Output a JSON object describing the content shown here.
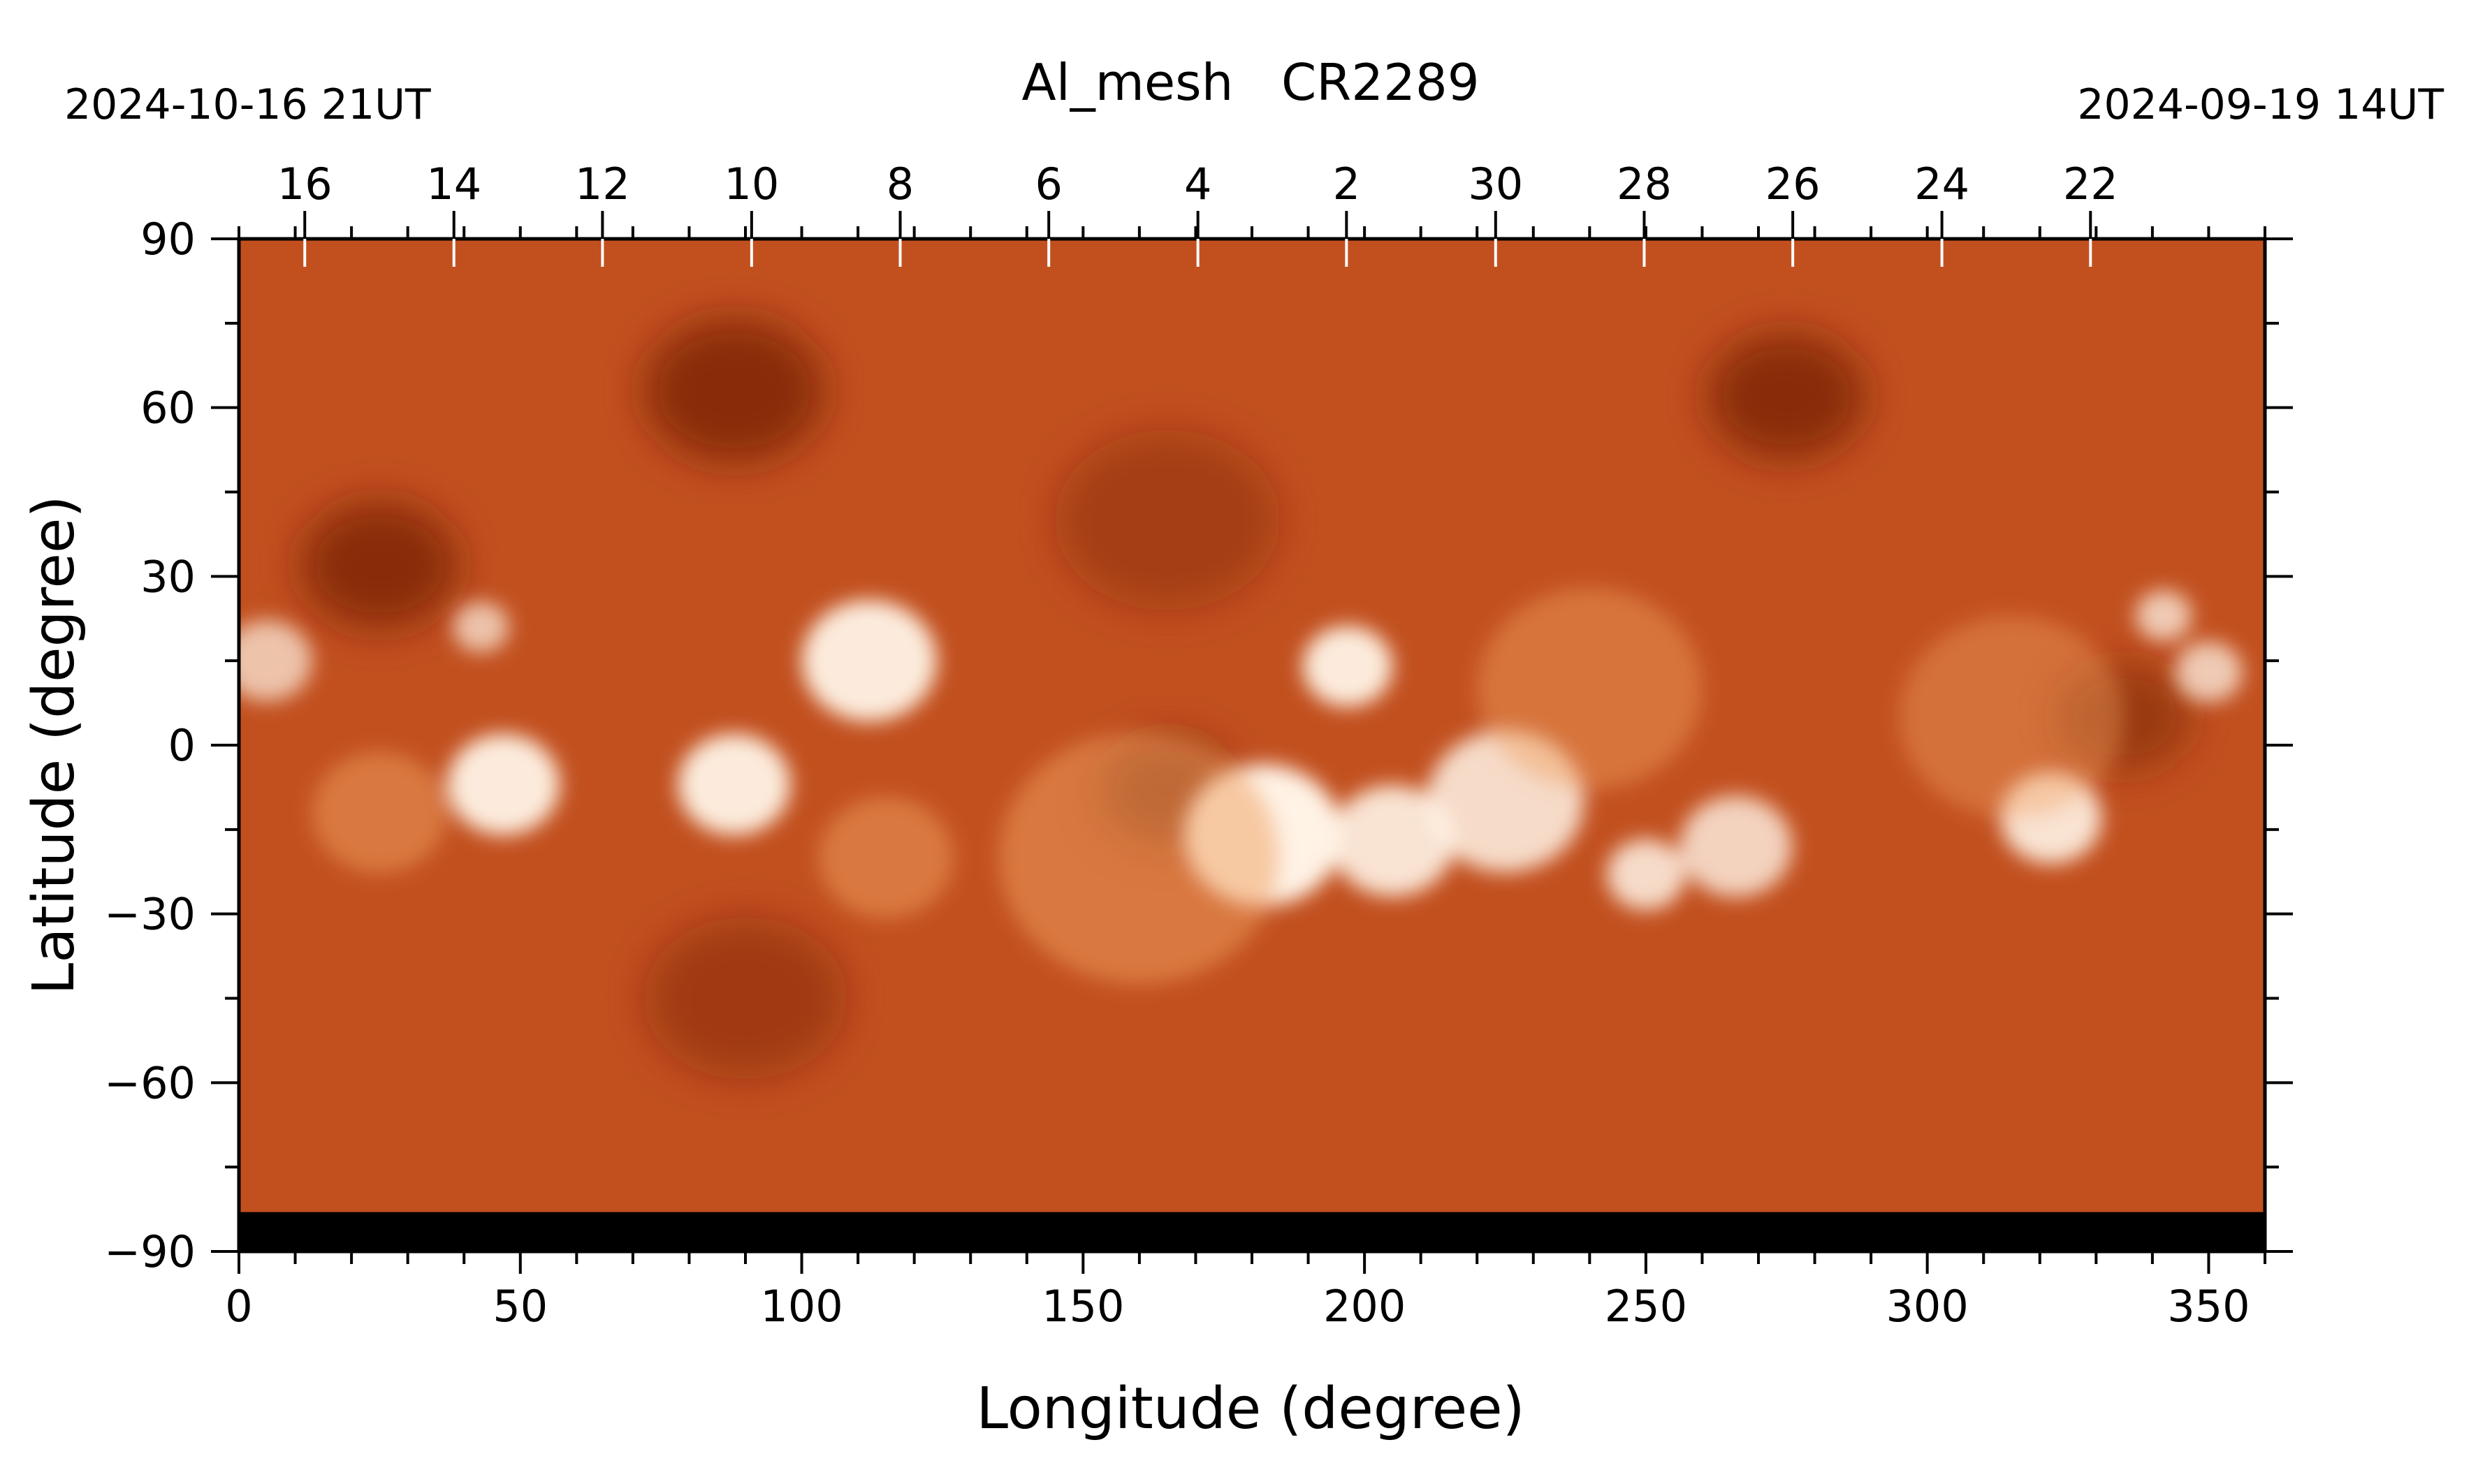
{
  "chart_data": {
    "type": "heatmap",
    "title": "Al_mesh   CR2289",
    "date_left": "2024-10-16 21UT",
    "date_right": "2024-09-19 14UT",
    "xlabel": "Longitude (degree)",
    "ylabel": "Latitude (degree)",
    "xlim": [
      0,
      360
    ],
    "ylim": [
      -90,
      90
    ],
    "x_ticks": [
      0,
      50,
      100,
      150,
      200,
      250,
      300,
      350
    ],
    "y_ticks": [
      -90,
      -60,
      -30,
      0,
      30,
      60,
      90
    ],
    "x_minor_step": 10,
    "y_minor_step": 15,
    "top_axis_ticks": [
      {
        "label": "16",
        "longitude": 11.7
      },
      {
        "label": "14",
        "longitude": 38.2
      },
      {
        "label": "12",
        "longitude": 64.6
      },
      {
        "label": "10",
        "longitude": 91.1
      },
      {
        "label": "8",
        "longitude": 117.5
      },
      {
        "label": "6",
        "longitude": 143.9
      },
      {
        "label": "4",
        "longitude": 170.4
      },
      {
        "label": "2",
        "longitude": 196.8
      },
      {
        "label": "30",
        "longitude": 223.3
      },
      {
        "label": "28",
        "longitude": 249.7
      },
      {
        "label": "26",
        "longitude": 276.1
      },
      {
        "label": "24",
        "longitude": 302.6
      },
      {
        "label": "22",
        "longitude": 329.0
      }
    ],
    "colormap": {
      "dark": "#6e1f05",
      "mid": "#bb4616",
      "bright": "#ffffff",
      "base": "#c2501f"
    },
    "no_data_below_latitude": -83,
    "bright_regions": [
      {
        "lon": 5,
        "lat": 15,
        "intensity": 0.7,
        "size": 8
      },
      {
        "lon": 43,
        "lat": 21,
        "intensity": 0.7,
        "size": 5
      },
      {
        "lon": 47,
        "lat": -7,
        "intensity": 0.95,
        "size": 10
      },
      {
        "lon": 25,
        "lat": -12,
        "intensity": 0.5,
        "size": 12
      },
      {
        "lon": 88,
        "lat": -7,
        "intensity": 0.95,
        "size": 10
      },
      {
        "lon": 112,
        "lat": 15,
        "intensity": 0.95,
        "size": 12
      },
      {
        "lon": 115,
        "lat": -20,
        "intensity": 0.5,
        "size": 12
      },
      {
        "lon": 182,
        "lat": -16,
        "intensity": 1.0,
        "size": 14
      },
      {
        "lon": 197,
        "lat": 14,
        "intensity": 0.95,
        "size": 8
      },
      {
        "lon": 205,
        "lat": -17,
        "intensity": 0.9,
        "size": 11
      },
      {
        "lon": 225,
        "lat": -10,
        "intensity": 0.85,
        "size": 14
      },
      {
        "lon": 250,
        "lat": -23,
        "intensity": 0.85,
        "size": 7
      },
      {
        "lon": 266,
        "lat": -18,
        "intensity": 0.8,
        "size": 10
      },
      {
        "lon": 322,
        "lat": -13,
        "intensity": 0.9,
        "size": 9
      },
      {
        "lon": 342,
        "lat": 23,
        "intensity": 0.75,
        "size": 5
      },
      {
        "lon": 350,
        "lat": 13,
        "intensity": 0.75,
        "size": 6
      },
      {
        "lon": 160,
        "lat": -20,
        "intensity": 0.5,
        "size": 25
      },
      {
        "lon": 240,
        "lat": 10,
        "intensity": 0.45,
        "size": 20
      },
      {
        "lon": 315,
        "lat": 5,
        "intensity": 0.4,
        "size": 20
      }
    ],
    "dark_regions": [
      {
        "lon": 25,
        "lat": 32,
        "intensity": 0.7,
        "size": 14
      },
      {
        "lon": 88,
        "lat": 63,
        "intensity": 0.7,
        "size": 16
      },
      {
        "lon": 275,
        "lat": 62,
        "intensity": 0.7,
        "size": 14
      },
      {
        "lon": 165,
        "lat": -8,
        "intensity": 0.6,
        "size": 12
      },
      {
        "lon": 90,
        "lat": -45,
        "intensity": 0.4,
        "size": 18
      },
      {
        "lon": 335,
        "lat": 5,
        "intensity": 0.5,
        "size": 12
      },
      {
        "lon": 165,
        "lat": 40,
        "intensity": 0.35,
        "size": 20
      }
    ]
  }
}
